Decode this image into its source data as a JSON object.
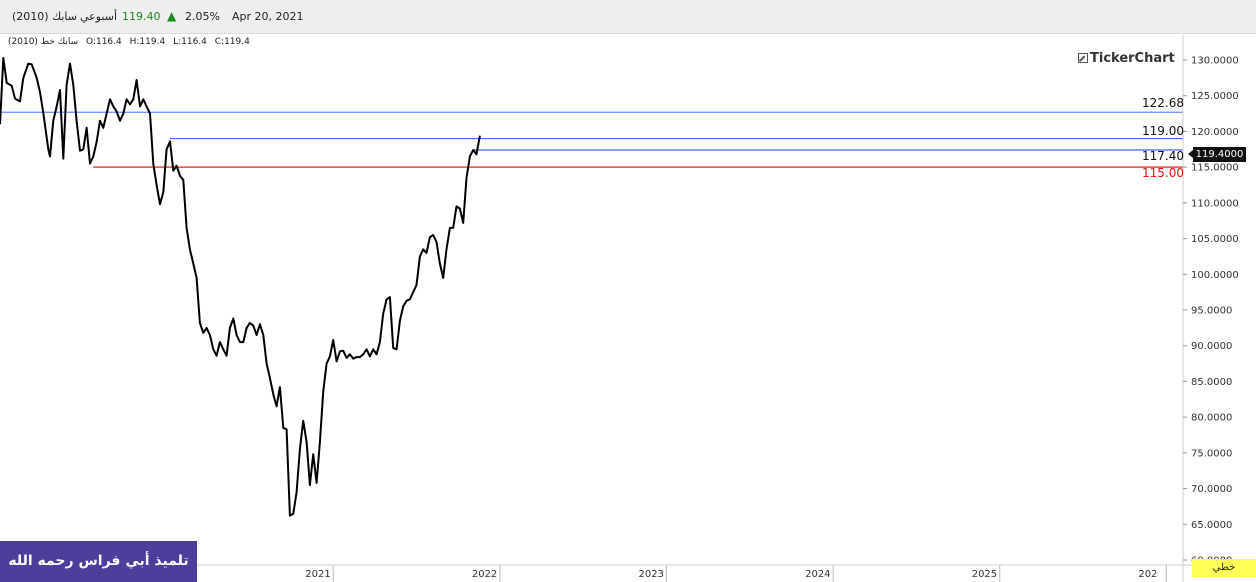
{
  "header": {
    "symbol": "سابك (2010)",
    "interval": "أسبوعي",
    "price": "119.40",
    "change": "2.05%",
    "date": "Apr 20, 2021",
    "up_color": "#1a8a1a"
  },
  "ohlc": {
    "series_label": "سابك خط (2010)",
    "open": "O:116.4",
    "high": "H:119.4",
    "low": "L:116.4",
    "close": "C:119.4"
  },
  "logo": "TickerChart",
  "price_tag": "119.4000",
  "chart_style_label": "خطي",
  "watermark": "تلميذ أبي فراس رحمه الله",
  "chart_data": {
    "type": "line",
    "series": [
      {
        "values": [
          [
            2019.0,
            121
          ],
          [
            2019.02,
            130.3
          ],
          [
            2019.04,
            126.8
          ],
          [
            2019.07,
            126.4
          ],
          [
            2019.09,
            124.6
          ],
          [
            2019.12,
            124.2
          ],
          [
            2019.14,
            127.5
          ],
          [
            2019.17,
            129.5
          ],
          [
            2019.19,
            129.4
          ],
          [
            2019.22,
            127.5
          ],
          [
            2019.24,
            125.5
          ],
          [
            2019.26,
            122.6
          ],
          [
            2019.29,
            117.5
          ],
          [
            2019.3,
            116.5
          ],
          [
            2019.32,
            121.5
          ],
          [
            2019.34,
            123.5
          ],
          [
            2019.36,
            125.8
          ],
          [
            2019.38,
            116.2
          ],
          [
            2019.4,
            126.5
          ],
          [
            2019.42,
            129.5
          ],
          [
            2019.44,
            126.5
          ],
          [
            2019.46,
            121.5
          ],
          [
            2019.48,
            117.3
          ],
          [
            2019.5,
            117.5
          ],
          [
            2019.52,
            120.5
          ],
          [
            2019.54,
            115.5
          ],
          [
            2019.56,
            116.5
          ],
          [
            2019.58,
            118.5
          ],
          [
            2019.6,
            121.5
          ],
          [
            2019.62,
            120.5
          ],
          [
            2019.64,
            122.5
          ],
          [
            2019.66,
            124.5
          ],
          [
            2019.68,
            123.5
          ],
          [
            2019.7,
            122.8
          ],
          [
            2019.72,
            121.5
          ],
          [
            2019.74,
            122.5
          ],
          [
            2019.76,
            124.5
          ],
          [
            2019.78,
            123.8
          ],
          [
            2019.8,
            124.5
          ],
          [
            2019.82,
            127.2
          ],
          [
            2019.84,
            123.5
          ],
          [
            2019.86,
            124.5
          ],
          [
            2019.88,
            123.5
          ],
          [
            2019.9,
            122.5
          ],
          [
            2019.92,
            115.5
          ],
          [
            2019.94,
            112.5
          ],
          [
            2019.96,
            109.8
          ],
          [
            2019.98,
            111.5
          ],
          [
            2020.0,
            117.5
          ],
          [
            2020.02,
            118.6
          ],
          [
            2020.04,
            114.5
          ],
          [
            2020.06,
            115.2
          ],
          [
            2020.08,
            113.8
          ],
          [
            2020.1,
            113.2
          ],
          [
            2020.12,
            106.5
          ],
          [
            2020.14,
            103.5
          ],
          [
            2020.16,
            101.5
          ],
          [
            2020.18,
            99.5
          ],
          [
            2020.2,
            93.2
          ],
          [
            2020.22,
            91.8
          ],
          [
            2020.24,
            92.5
          ],
          [
            2020.26,
            91.5
          ],
          [
            2020.28,
            89.5
          ],
          [
            2020.3,
            88.6
          ],
          [
            2020.32,
            90.5
          ],
          [
            2020.34,
            89.5
          ],
          [
            2020.36,
            88.6
          ],
          [
            2020.38,
            92.5
          ],
          [
            2020.4,
            93.8
          ],
          [
            2020.42,
            91.5
          ],
          [
            2020.44,
            90.5
          ],
          [
            2020.46,
            90.5
          ],
          [
            2020.48,
            92.5
          ],
          [
            2020.5,
            93.2
          ],
          [
            2020.52,
            92.8
          ],
          [
            2020.54,
            91.5
          ],
          [
            2020.56,
            93.0
          ],
          [
            2020.58,
            91.5
          ],
          [
            2020.6,
            87.5
          ],
          [
            2020.62,
            85.5
          ],
          [
            2020.64,
            83.2
          ],
          [
            2020.66,
            81.5
          ],
          [
            2020.68,
            84.2
          ],
          [
            2020.7,
            78.5
          ],
          [
            2020.72,
            78.3
          ],
          [
            2020.74,
            66.2
          ],
          [
            2020.76,
            66.5
          ],
          [
            2020.78,
            69.5
          ],
          [
            2020.8,
            75.5
          ],
          [
            2020.82,
            79.5
          ],
          [
            2020.84,
            76.5
          ],
          [
            2020.86,
            70.5
          ],
          [
            2020.88,
            74.8
          ],
          [
            2020.9,
            70.8
          ],
          [
            2020.92,
            76.5
          ],
          [
            2020.94,
            83.5
          ],
          [
            2020.96,
            87.5
          ],
          [
            2020.98,
            88.5
          ],
          [
            2021.0,
            90.8
          ],
          [
            2021.02,
            87.8
          ],
          [
            2021.04,
            89.2
          ],
          [
            2021.06,
            89.3
          ],
          [
            2021.08,
            88.3
          ],
          [
            2021.1,
            88.8
          ],
          [
            2021.12,
            88.2
          ],
          [
            2021.14,
            88.4
          ],
          [
            2021.16,
            88.4
          ],
          [
            2021.18,
            88.8
          ],
          [
            2021.2,
            89.5
          ],
          [
            2021.22,
            88.5
          ],
          [
            2021.24,
            89.5
          ],
          [
            2021.26,
            88.8
          ],
          [
            2021.28,
            90.5
          ],
          [
            2021.3,
            94.5
          ],
          [
            2021.32,
            96.5
          ],
          [
            2021.34,
            96.8
          ],
          [
            2021.36,
            89.7
          ],
          [
            2021.38,
            89.5
          ],
          [
            2021.4,
            93.5
          ],
          [
            2021.42,
            95.5
          ],
          [
            2021.44,
            96.3
          ],
          [
            2021.46,
            96.5
          ],
          [
            2021.48,
            97.5
          ],
          [
            2021.5,
            98.5
          ],
          [
            2021.52,
            102.5
          ],
          [
            2021.54,
            103.5
          ],
          [
            2021.56,
            103.0
          ],
          [
            2021.58,
            105.2
          ],
          [
            2021.6,
            105.5
          ],
          [
            2021.62,
            104.5
          ],
          [
            2021.64,
            101.5
          ],
          [
            2021.66,
            99.5
          ],
          [
            2021.68,
            103.5
          ],
          [
            2021.7,
            106.5
          ],
          [
            2021.72,
            106.5
          ],
          [
            2021.74,
            109.5
          ],
          [
            2021.76,
            109.2
          ],
          [
            2021.78,
            107.2
          ],
          [
            2021.8,
            113.5
          ],
          [
            2021.82,
            116.5
          ],
          [
            2021.84,
            117.4
          ],
          [
            2021.86,
            116.8
          ],
          [
            2021.88,
            119.4
          ]
        ]
      }
    ],
    "x_ticks": [
      "2020",
      "2021",
      "2022",
      "2023",
      "2024",
      "2025",
      "202"
    ],
    "y_ticks": [
      "130.0000",
      "125.0000",
      "120.0000",
      "115.0000",
      "110.0000",
      "105.0000",
      "100.0000",
      "95.0000",
      "90.0000",
      "85.0000",
      "80.0000",
      "75.0000",
      "70.0000",
      "65.0000",
      "60.0000"
    ],
    "ylim": [
      59.3,
      133.5
    ],
    "xlim": [
      2019.0,
      2026.1
    ],
    "line_color": "#000000",
    "horizontal_lines": [
      {
        "value": 122.68,
        "label": "122.68",
        "color": "#6688ff",
        "start_x": 2019.0
      },
      {
        "value": 119.0,
        "label": "119.00",
        "color": "#4466ee",
        "start_x": 2020.02
      },
      {
        "value": 117.4,
        "label": "117.40",
        "color": "#4466ee",
        "start_x": 2021.84
      },
      {
        "value": 115.0,
        "label": "115.00",
        "color": "#ee2222",
        "start_x": 2019.56
      }
    ]
  }
}
